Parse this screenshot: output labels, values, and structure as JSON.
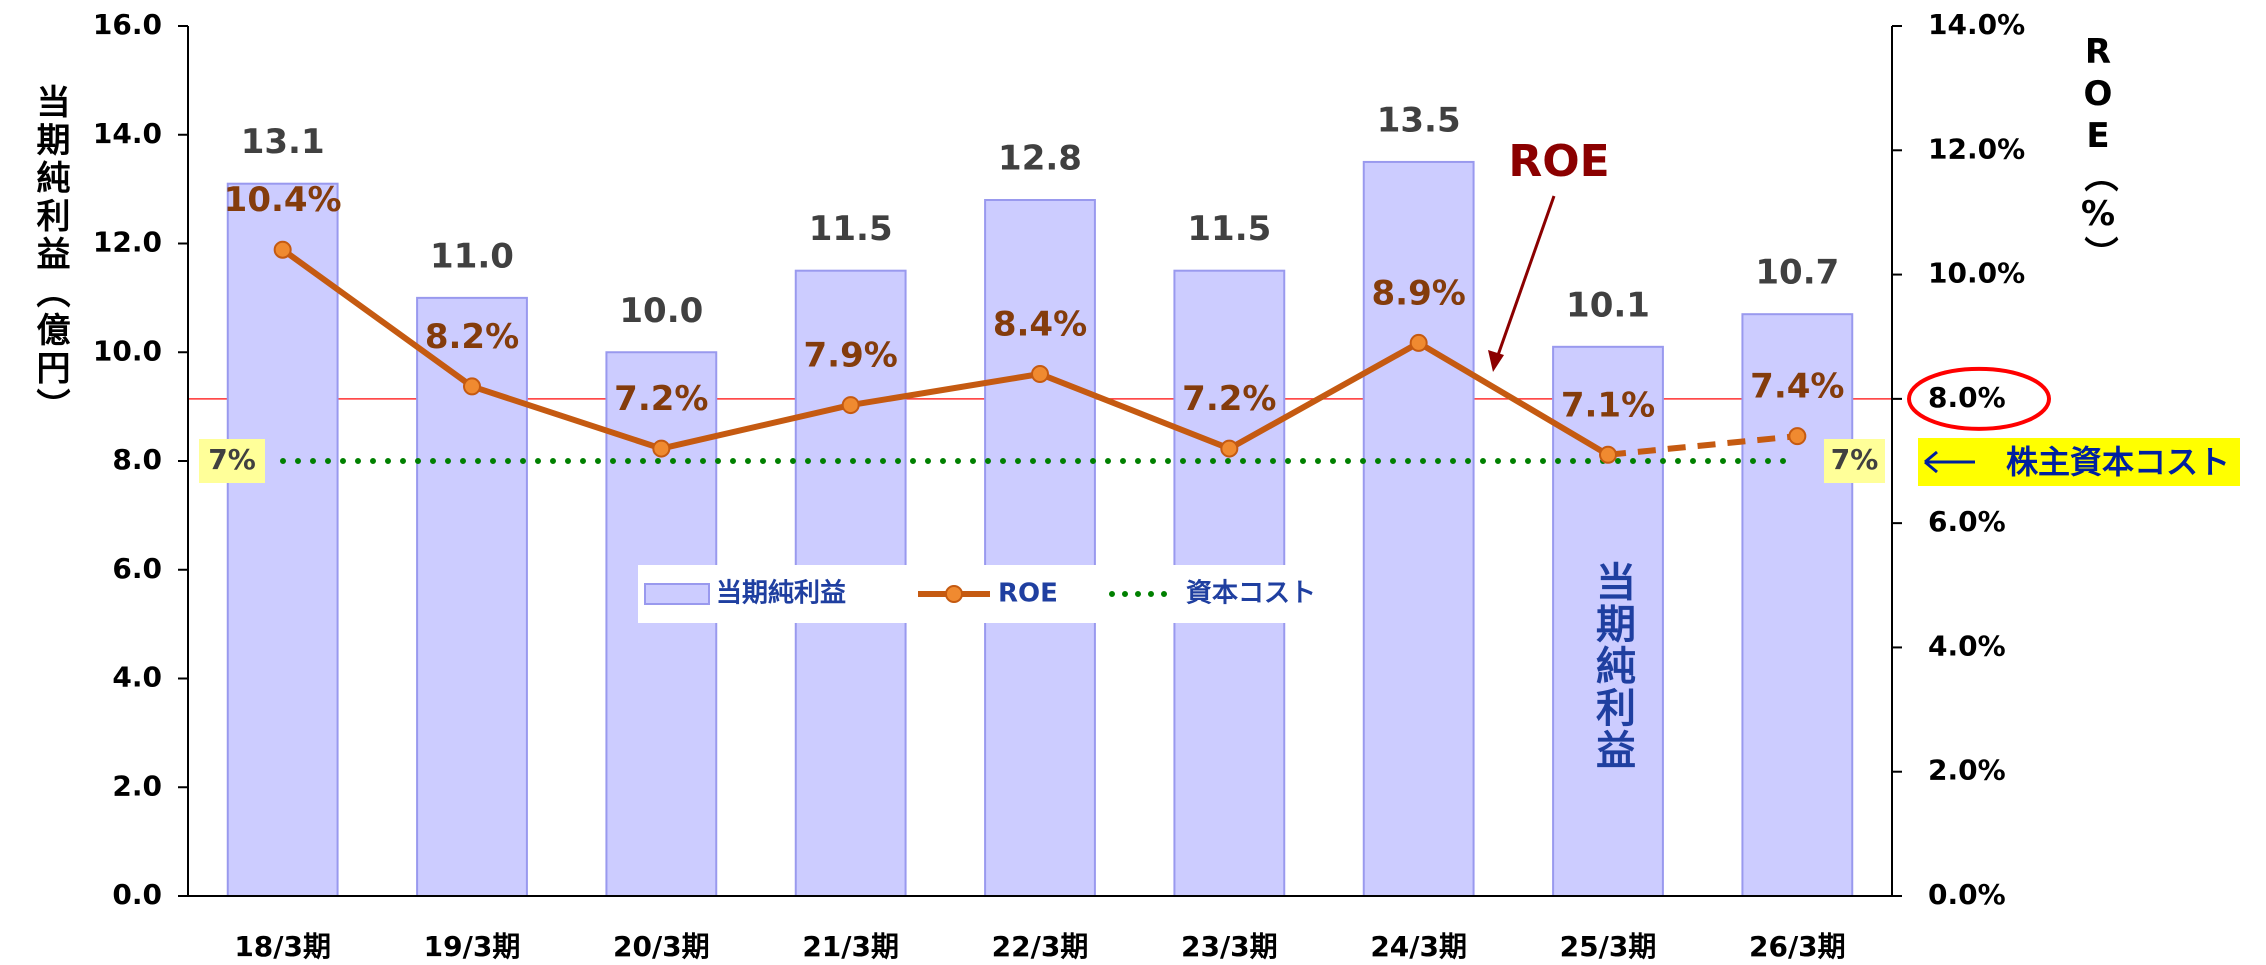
{
  "chart_data": {
    "type": "bar_line",
    "y_label": "当期純利益（億円）",
    "y2_label": "ROE（%）",
    "categories": [
      "18/3期",
      "19/3期",
      "20/3期",
      "21/3期",
      "22/3期",
      "23/3期",
      "24/3期",
      "25/3期",
      "26/3期"
    ],
    "series": [
      {
        "name": "当期純利益",
        "type": "bar",
        "color": "#ccccff",
        "axis": "y",
        "values": [
          13.1,
          11.0,
          10.0,
          11.5,
          12.8,
          11.5,
          13.5,
          10.1,
          10.7
        ],
        "value_labels": [
          "13.1",
          "11.0",
          "10.0",
          "11.5",
          "12.8",
          "11.5",
          "13.5",
          "10.1",
          "10.7"
        ]
      },
      {
        "name": "ROE",
        "type": "line",
        "color": "#c55a11",
        "axis": "y2",
        "dashed_from": 7,
        "values": [
          10.4,
          8.2,
          7.2,
          7.9,
          8.4,
          7.2,
          8.9,
          7.1,
          7.4
        ],
        "value_labels": [
          "10.4%",
          "8.2%",
          "7.2%",
          "7.9%",
          "8.4%",
          "7.2%",
          "8.9%",
          "7.1%",
          "7.4%"
        ]
      }
    ],
    "reference_lines": [
      {
        "name": "資本コスト",
        "value": 7,
        "label": "7%",
        "axis": "y2",
        "color": "#008000"
      }
    ],
    "highlight_line": {
      "value": 8,
      "axis": "y2",
      "color": "#ff3030"
    },
    "ylim": [
      0,
      16
    ],
    "yticks": [
      {
        "value": 0,
        "label": "0.0"
      },
      {
        "value": 2,
        "label": "2.0"
      },
      {
        "value": 4,
        "label": "4.0"
      },
      {
        "value": 6,
        "label": "6.0"
      },
      {
        "value": 8,
        "label": "8.0"
      },
      {
        "value": 10,
        "label": "10.0"
      },
      {
        "value": 12,
        "label": "12.0"
      },
      {
        "value": 14,
        "label": "14.0"
      },
      {
        "value": 16,
        "label": "16.0"
      }
    ],
    "y2lim": [
      0,
      14
    ],
    "y2ticks": [
      {
        "value": 0,
        "label": "0.0%"
      },
      {
        "value": 2,
        "label": "2.0%"
      },
      {
        "value": 4,
        "label": "4.0%"
      },
      {
        "value": 6,
        "label": "6.0%"
      },
      {
        "value": 8,
        "label": "8.0%"
      },
      {
        "value": 10,
        "label": "10.0%"
      },
      {
        "value": 12,
        "label": "12.0%"
      },
      {
        "value": 14,
        "label": "14.0%"
      }
    ],
    "annotations": [
      {
        "text": "ROE"
      },
      {
        "text": "株主資本コスト"
      },
      {
        "text": "当期純利益"
      }
    ]
  }
}
